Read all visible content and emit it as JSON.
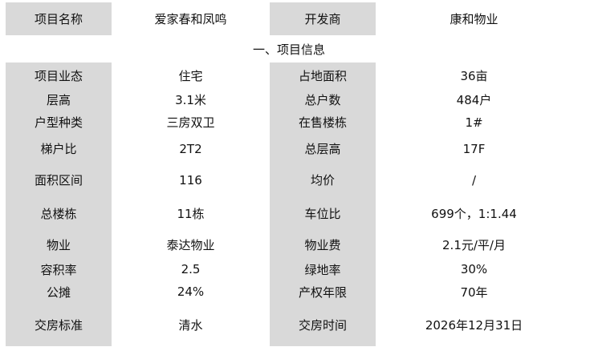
{
  "header": {
    "label1": "项目名称",
    "value1": "爱家春和凤鸣",
    "label2": "开发商",
    "value2": "康和物业"
  },
  "section_title": "一、项目信息",
  "rows": [
    {
      "l1": "项目业态",
      "v1": "住宅",
      "l2": "占地面积",
      "v2": "36亩"
    },
    {
      "l1": "层高",
      "v1": "3.1米",
      "l2": "总户数",
      "v2": "484户"
    },
    {
      "l1": "户型种类",
      "v1": "三房双卫",
      "l2": "在售楼栋",
      "v2": "1#"
    },
    {
      "l1": "梯户比",
      "v1": "2T2",
      "l2": "总层高",
      "v2": "17F"
    },
    {
      "l1": "面积区间",
      "v1": "116",
      "l2": "均价",
      "v2": "/"
    },
    {
      "l1": "总楼栋",
      "v1": "11栋",
      "l2": "车位比",
      "v2": "699个，1:1.44"
    },
    {
      "l1": "物业",
      "v1": "泰达物业",
      "l2": "物业费",
      "v2": "2.1元/平/月"
    },
    {
      "l1": "容积率",
      "v1": "2.5",
      "l2": "绿地率",
      "v2": "30%"
    },
    {
      "l1": "公摊",
      "v1": "24%",
      "l2": "产权年限",
      "v2": "70年"
    },
    {
      "l1": "交房标准",
      "v1": "清水",
      "l2": "交房时间",
      "v2": "2026年12月31日"
    }
  ]
}
